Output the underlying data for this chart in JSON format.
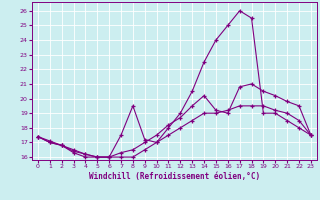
{
  "xlabel": "Windchill (Refroidissement éolien,°C)",
  "bg_color": "#cceef0",
  "line_color": "#800080",
  "grid_color": "#aadddd",
  "xlim": [
    -0.5,
    23.5
  ],
  "ylim": [
    15.8,
    26.6
  ],
  "yticks": [
    16,
    17,
    18,
    19,
    20,
    21,
    22,
    23,
    24,
    25,
    26
  ],
  "xticks": [
    0,
    1,
    2,
    3,
    4,
    5,
    6,
    7,
    8,
    9,
    10,
    11,
    12,
    13,
    14,
    15,
    16,
    17,
    18,
    19,
    20,
    21,
    22,
    23
  ],
  "series": [
    [
      17.4,
      17.0,
      16.8,
      16.3,
      16.0,
      16.0,
      16.0,
      16.0,
      16.0,
      16.5,
      17.0,
      17.5,
      18.0,
      18.5,
      19.0,
      19.0,
      19.2,
      19.5,
      19.5,
      19.5,
      19.2,
      19.0,
      18.5,
      17.5
    ],
    [
      17.4,
      17.0,
      16.8,
      16.5,
      16.2,
      16.0,
      16.0,
      17.5,
      19.5,
      17.2,
      17.0,
      18.0,
      19.0,
      20.5,
      22.5,
      24.0,
      25.0,
      26.0,
      25.5,
      19.0,
      19.0,
      18.5,
      18.0,
      17.5
    ],
    [
      17.4,
      17.1,
      16.8,
      16.4,
      16.2,
      16.0,
      16.0,
      16.3,
      16.5,
      17.0,
      17.5,
      18.2,
      18.7,
      19.5,
      20.2,
      19.2,
      19.0,
      20.8,
      21.0,
      20.5,
      20.2,
      19.8,
      19.5,
      17.5
    ]
  ]
}
